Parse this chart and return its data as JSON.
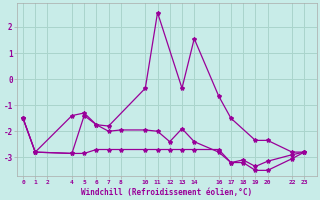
{
  "xlabel": "Windchill (Refroidissement éolien,°C)",
  "background_color": "#c8ece8",
  "grid_color": "#b0d8d0",
  "line_color": "#990099",
  "xticks": [
    0,
    1,
    2,
    4,
    5,
    6,
    7,
    8,
    10,
    11,
    12,
    13,
    14,
    16,
    17,
    18,
    19,
    20,
    22,
    23
  ],
  "yticks": [
    -3,
    -2,
    -1,
    0,
    1,
    2
  ],
  "ylim": [
    -3.7,
    2.9
  ],
  "xlim": [
    -0.5,
    24.0
  ],
  "series": [
    {
      "x": [
        0,
        1,
        4,
        5,
        6,
        7,
        10,
        11,
        13,
        14,
        16,
        17,
        19,
        20,
        22,
        23
      ],
      "y": [
        -1.5,
        -2.8,
        -1.4,
        -1.3,
        -1.75,
        -1.8,
        -0.35,
        2.55,
        -0.35,
        1.55,
        -0.65,
        -1.5,
        -2.35,
        -2.35,
        -2.8,
        -2.8
      ]
    },
    {
      "x": [
        0,
        1,
        4,
        5,
        6,
        7,
        8,
        10,
        11,
        12,
        13,
        14,
        16,
        17,
        18,
        19,
        20,
        22,
        23
      ],
      "y": [
        -1.5,
        -2.8,
        -2.85,
        -1.4,
        -1.75,
        -2.0,
        -1.95,
        -1.95,
        -2.0,
        -2.4,
        -1.9,
        -2.4,
        -2.8,
        -3.2,
        -3.1,
        -3.35,
        -3.15,
        -2.9,
        -2.8
      ]
    },
    {
      "x": [
        0,
        1,
        4,
        5,
        6,
        7,
        8,
        10,
        11,
        12,
        13,
        14,
        16,
        17,
        18,
        19,
        20,
        22,
        23
      ],
      "y": [
        -1.5,
        -2.8,
        -2.85,
        -2.85,
        -2.7,
        -2.7,
        -2.7,
        -2.7,
        -2.7,
        -2.7,
        -2.7,
        -2.7,
        -2.7,
        -3.2,
        -3.2,
        -3.5,
        -3.5,
        -3.05,
        -2.8
      ]
    }
  ]
}
